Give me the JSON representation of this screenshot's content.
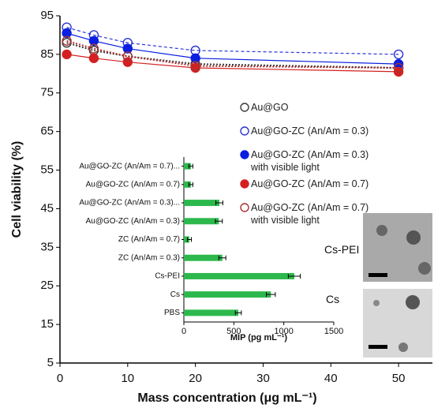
{
  "chart_data": [
    {
      "type": "line",
      "xlabel": "Mass concentration (μg mL⁻¹)",
      "ylabel": "Cell viability (%)",
      "x": [
        1,
        5,
        10,
        20,
        50
      ],
      "xlim": [
        0,
        55
      ],
      "xticks": [
        0,
        10,
        20,
        30,
        40,
        50
      ],
      "ylim": [
        5,
        95
      ],
      "yticks": [
        5,
        15,
        25,
        35,
        45,
        55,
        65,
        75,
        85,
        95
      ],
      "series": [
        {
          "name": "Au@GO",
          "color": "#3a3a3a",
          "marker": "open",
          "dash": "2,2",
          "values": [
            88,
            86,
            84.5,
            82.5,
            81.5
          ]
        },
        {
          "name": "Au@GO-ZC (An/Am = 0.3)",
          "color": "#2a35d6",
          "marker": "open",
          "dash": "4,3",
          "values": [
            92,
            90,
            88,
            86,
            85
          ]
        },
        {
          "name": "Au@GO-ZC (An/Am = 0.3)\nwith visible light",
          "color": "#0a1fe0",
          "marker": "filled",
          "dash": "none",
          "values": [
            90.5,
            88.5,
            86.5,
            84,
            82.5
          ]
        },
        {
          "name": "Au@GO-ZC (An/Am = 0.7)",
          "color": "#d42020",
          "marker": "filled",
          "dash": "none",
          "values": [
            85,
            84,
            83,
            81.5,
            80.5
          ]
        },
        {
          "name": "Au@GO-ZC (An/Am = 0.7)\nwith visible light",
          "color": "#a83232",
          "marker": "open",
          "dash": "2,2",
          "values": [
            88.5,
            86.5,
            84.5,
            82,
            81.5
          ]
        }
      ]
    },
    {
      "type": "hbar",
      "xlabel": "MIP (pg mL⁻¹)",
      "categories": [
        "Au@GO-ZC (An/Am = 0.7)...",
        "Au@GO-ZC (An/Am = 0.7)",
        "Au@GO-ZC (An/Am = 0.3)...",
        "Au@GO-ZC (An/Am = 0.3)",
        "ZC (An/Am = 0.7)",
        "ZC (An/Am = 0.3)",
        "Cs-PEI",
        "Cs",
        "PBS"
      ],
      "values": [
        70,
        70,
        355,
        350,
        55,
        385,
        1105,
        870,
        545
      ],
      "errors": [
        20,
        20,
        35,
        35,
        20,
        35,
        60,
        45,
        30
      ],
      "color": "#2db84d",
      "xlim": [
        0,
        1500
      ],
      "xticks": [
        0,
        500,
        1000,
        1500
      ]
    }
  ],
  "images": [
    {
      "label": "Cs-PEI"
    },
    {
      "label": "Cs"
    }
  ]
}
